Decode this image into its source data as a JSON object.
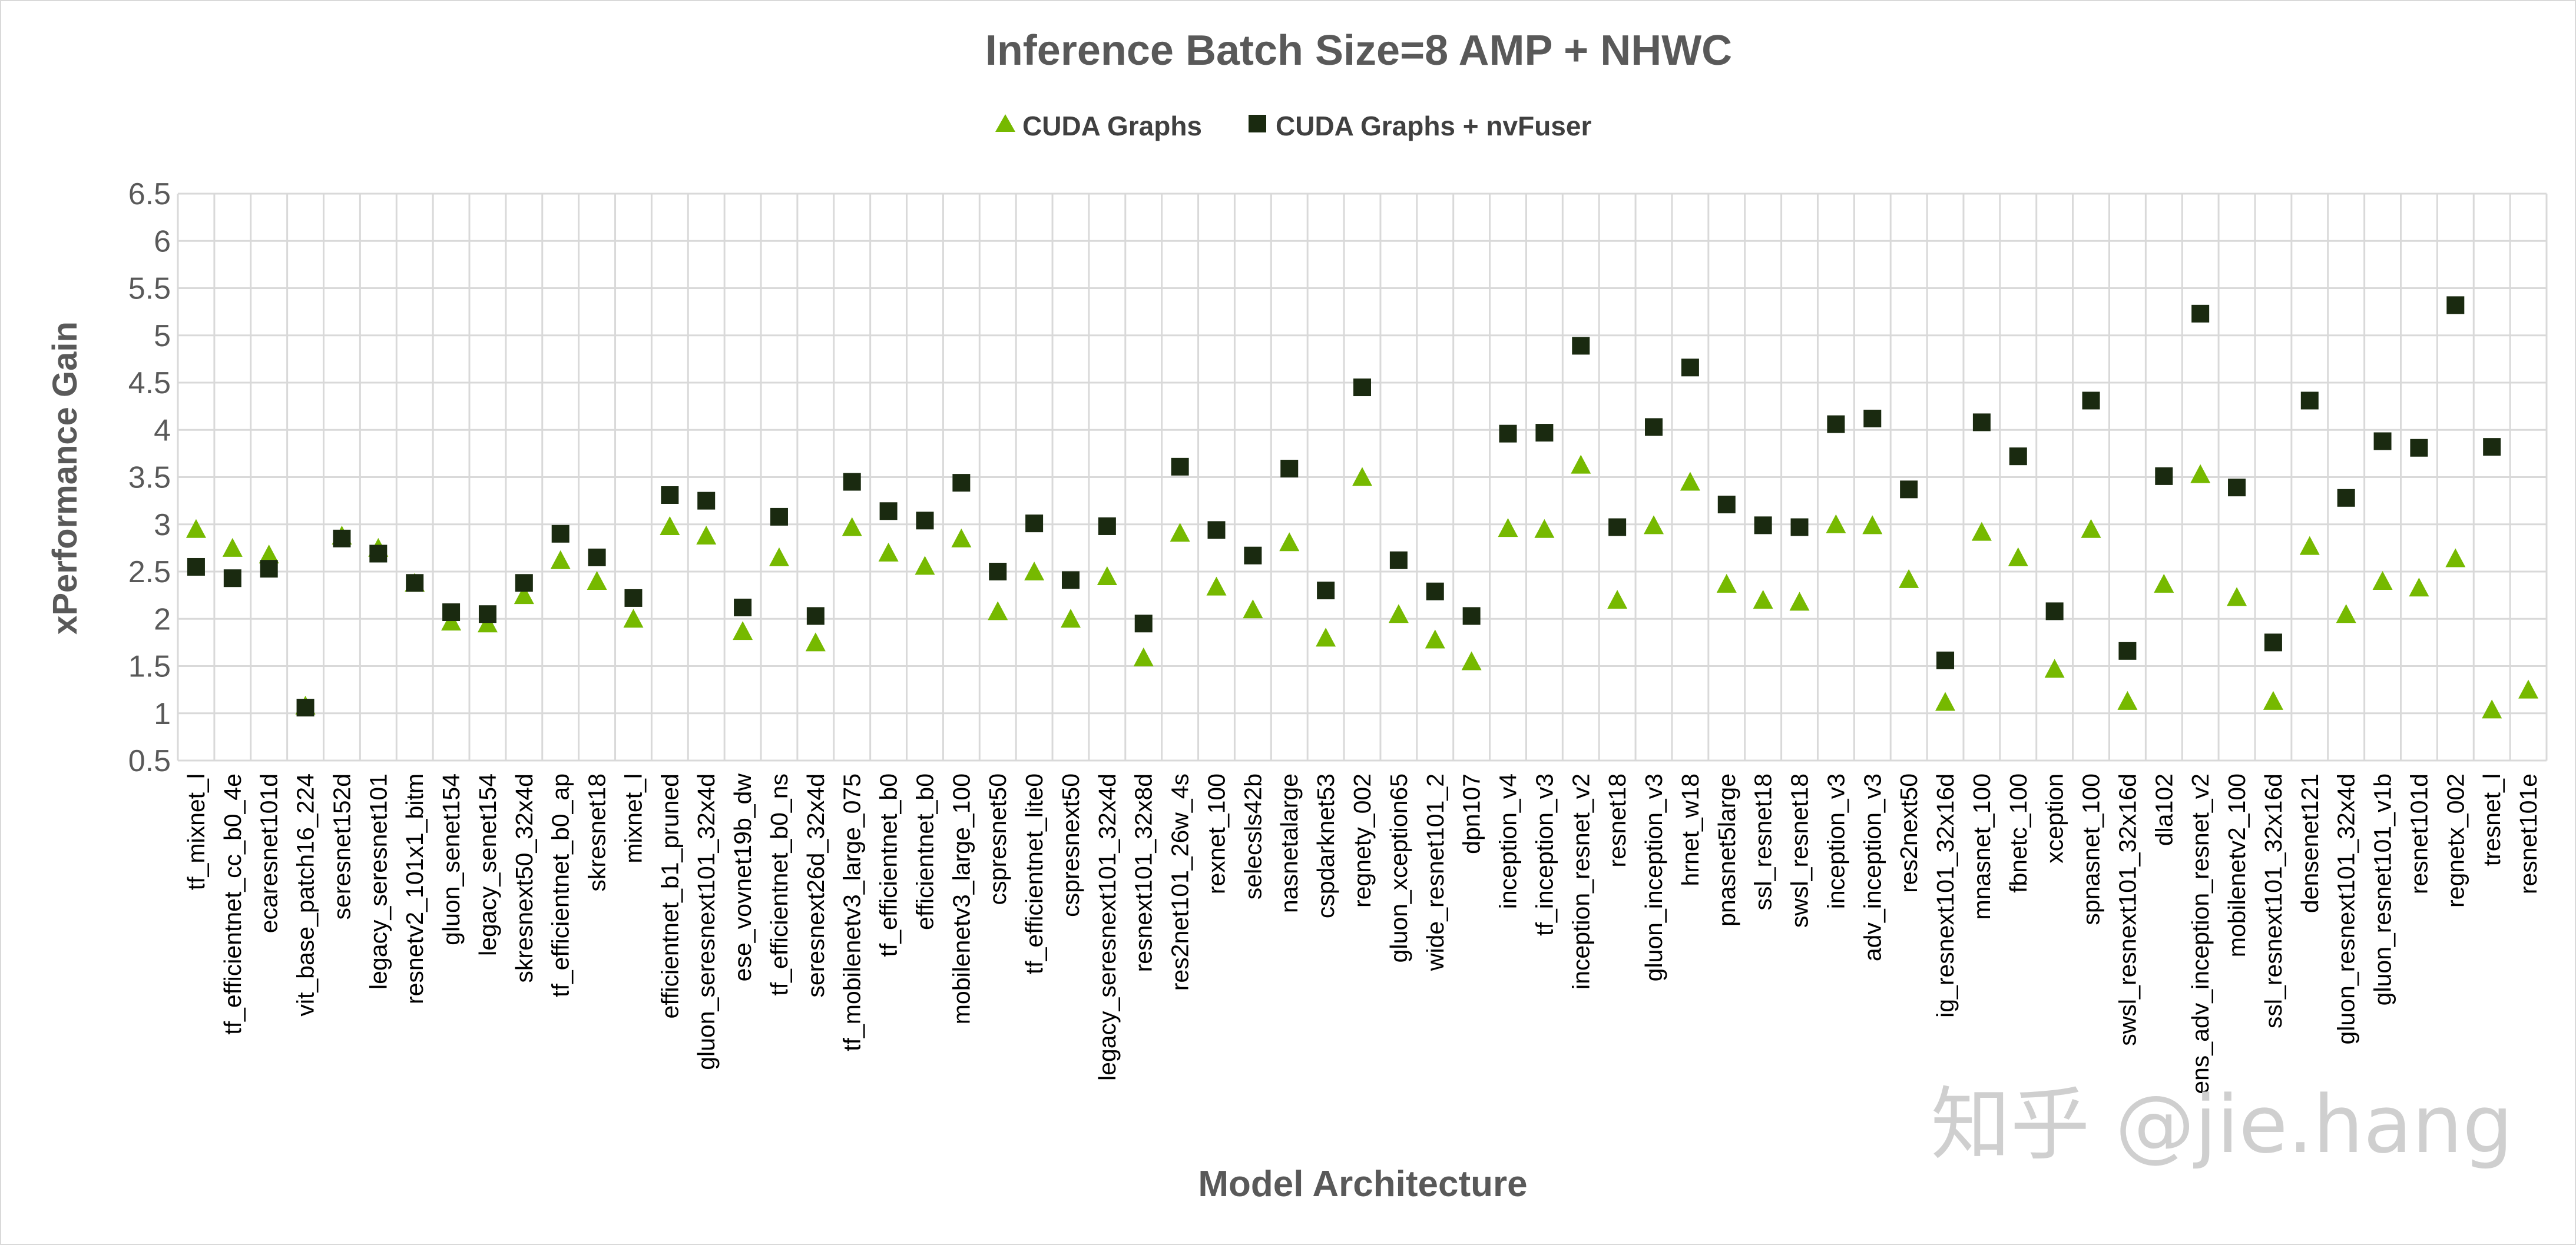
{
  "watermark": "知乎 @jie.hang",
  "colors": {
    "series_a": "#76b900",
    "series_b": "#1a2a10",
    "grid": "#d9d9d9",
    "text": "#595959"
  },
  "chart_data": {
    "type": "scatter",
    "title": "Inference Batch Size=8 AMP + NHWC",
    "xlabel": "Model Architecture",
    "ylabel": "xPerformance Gain",
    "ylim": [
      0.5,
      6.5
    ],
    "yticks": [
      0.5,
      1,
      1.5,
      2,
      2.5,
      3,
      3.5,
      4,
      4.5,
      5,
      5.5,
      6,
      6.5
    ],
    "grid": true,
    "legend_position": "top",
    "categories": [
      "tf_mixnet_l",
      "tf_efficientnet_cc_b0_4e",
      "ecaresnet101d",
      "vit_base_patch16_224",
      "seresnet152d",
      "legacy_seresnet101",
      "resnetv2_101x1_bitm",
      "gluon_senet154",
      "legacy_senet154",
      "skresnext50_32x4d",
      "tf_efficientnet_b0_ap",
      "skresnet18",
      "mixnet_l",
      "efficientnet_b1_pruned",
      "gluon_seresnext101_32x4d",
      "ese_vovnet19b_dw",
      "tf_efficientnet_b0_ns",
      "seresnext26d_32x4d",
      "tf_mobilenetv3_large_075",
      "tf_efficientnet_b0",
      "efficientnet_b0",
      "mobilenetv3_large_100",
      "cspresnet50",
      "tf_efficientnet_lite0",
      "cspresnext50",
      "legacy_seresnext101_32x4d",
      "resnext101_32x8d",
      "res2net101_26w_4s",
      "rexnet_100",
      "selecsls42b",
      "nasnetalarge",
      "cspdarknet53",
      "regnety_002",
      "gluon_xception65",
      "wide_resnet101_2",
      "dpn107",
      "inception_v4",
      "tf_inception_v3",
      "inception_resnet_v2",
      "resnet18",
      "gluon_inception_v3",
      "hrnet_w18",
      "pnasnet5large",
      "ssl_resnet18",
      "swsl_resnet18",
      "inception_v3",
      "adv_inception_v3",
      "res2next50",
      "ig_resnext101_32x16d",
      "mnasnet_100",
      "fbnetc_100",
      "xception",
      "spnasnet_100",
      "swsl_resnext101_32x16d",
      "dla102",
      "ens_adv_inception_resnet_v2",
      "mobilenetv2_100",
      "ssl_resnext101_32x16d",
      "densenet121",
      "gluon_resnext101_32x4d",
      "gluon_resnet101_v1b",
      "resnet101d",
      "regnetx_002",
      "tresnet_l",
      "resnet101e"
    ],
    "series": [
      {
        "name": "CUDA Graphs",
        "marker": "triangle",
        "values": [
          2.95,
          2.75,
          2.68,
          1.08,
          2.88,
          2.75,
          2.38,
          1.97,
          1.95,
          2.25,
          2.62,
          2.4,
          2.0,
          2.98,
          2.88,
          1.87,
          2.65,
          1.75,
          2.97,
          2.7,
          2.56,
          2.85,
          2.08,
          2.5,
          2.0,
          2.45,
          1.59,
          2.91,
          2.34,
          2.1,
          2.81,
          1.8,
          3.5,
          2.05,
          1.78,
          1.55,
          2.96,
          2.95,
          3.63,
          2.2,
          2.99,
          3.45,
          2.37,
          2.2,
          2.18,
          3.0,
          2.99,
          2.42,
          1.12,
          2.92,
          2.65,
          1.47,
          2.95,
          1.13,
          2.37,
          3.53,
          2.23,
          1.13,
          2.77,
          2.05,
          2.4,
          2.33,
          2.64,
          1.04,
          1.25
        ]
      },
      {
        "name": "CUDA Graphs + nvFuser",
        "marker": "square",
        "values": [
          2.55,
          2.43,
          2.53,
          1.06,
          2.85,
          2.69,
          2.38,
          2.07,
          2.05,
          2.38,
          2.9,
          2.65,
          2.22,
          3.31,
          3.25,
          2.12,
          3.08,
          2.03,
          3.45,
          3.14,
          3.04,
          3.44,
          2.5,
          3.01,
          2.41,
          2.98,
          1.95,
          3.61,
          2.94,
          2.67,
          3.59,
          2.3,
          4.45,
          2.62,
          2.29,
          2.03,
          3.96,
          3.97,
          4.89,
          2.97,
          4.03,
          4.66,
          3.21,
          2.99,
          2.97,
          4.06,
          4.12,
          3.37,
          1.56,
          4.08,
          3.72,
          2.08,
          4.31,
          1.66,
          3.51,
          5.23,
          3.39,
          1.75,
          4.31,
          3.28,
          3.88,
          3.81,
          5.32,
          3.82,
          null
        ]
      }
    ]
  }
}
